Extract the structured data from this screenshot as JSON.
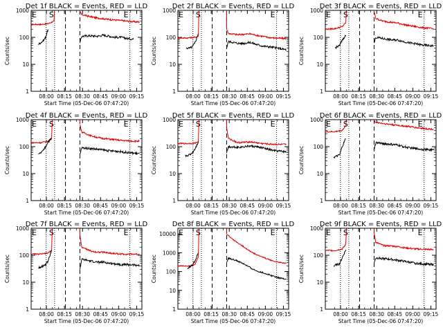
{
  "window": {
    "background": "#ffffff"
  },
  "style": {
    "events_color": "#000000",
    "lld_color": "#dd0000"
  },
  "chart_data": {
    "type": "line",
    "ylabel": "Counts/sec",
    "xlabel": "Start Time (05-Dec-06 07:47:20)",
    "x_ticks": [
      "08:00",
      "08:15",
      "08:30",
      "08:45",
      "09:00",
      "09:15"
    ],
    "y_scale": "log",
    "ylim": [
      1,
      1000
    ],
    "ylim_extended": [
      1,
      20000
    ],
    "y_ticks": [
      "1",
      "10",
      "100",
      "1000"
    ],
    "y_ticks_extended": [
      "1",
      "10",
      "100",
      "1000",
      "10000"
    ],
    "xlim_minutes_after_start": [
      0,
      92
    ],
    "markers": {
      "E_dotted": [
        0,
        12.5,
        82
      ],
      "S_dotted": 19.5,
      "dashed": [
        28.5,
        40.5
      ],
      "labels": [
        "E",
        "S",
        "E"
      ]
    },
    "panels": [
      {
        "title": "Det 1f BLACK = Events, RED = LLD",
        "extended": false,
        "events_pre": [
          [
            6,
            55
          ],
          [
            10,
            75
          ],
          [
            12,
            100
          ],
          [
            14,
            200
          ]
        ],
        "events_post": [
          [
            40.5,
            60
          ],
          [
            42,
            110
          ],
          [
            48,
            115
          ],
          [
            55,
            110
          ],
          [
            60,
            120
          ],
          [
            65,
            110
          ],
          [
            70,
            100
          ],
          [
            75,
            100
          ],
          [
            80,
            90
          ],
          [
            85,
            85
          ]
        ],
        "lld_pre": [
          [
            0,
            300
          ],
          [
            8,
            300
          ],
          [
            14,
            320
          ],
          [
            19,
            400
          ]
        ],
        "lld_post": [
          [
            40.5,
            900
          ],
          [
            42,
            700
          ],
          [
            48,
            600
          ],
          [
            55,
            520
          ],
          [
            65,
            460
          ],
          [
            75,
            420
          ],
          [
            85,
            380
          ],
          [
            90,
            370
          ]
        ]
      },
      {
        "title": "Det 2f BLACK = Events, RED = LLD",
        "extended": false,
        "events_pre": [
          [
            7,
            40
          ],
          [
            10,
            40
          ],
          [
            12,
            45
          ],
          [
            14,
            60
          ],
          [
            17,
            140
          ]
        ],
        "events_post": [
          [
            40.5,
            40
          ],
          [
            42,
            70
          ],
          [
            50,
            60
          ],
          [
            55,
            60
          ],
          [
            60,
            65
          ],
          [
            65,
            55
          ],
          [
            70,
            48
          ],
          [
            75,
            45
          ],
          [
            80,
            42
          ],
          [
            85,
            38
          ],
          [
            90,
            35
          ]
        ],
        "lld_pre": [
          [
            0,
            95
          ],
          [
            8,
            95
          ],
          [
            14,
            100
          ],
          [
            17,
            110
          ]
        ],
        "lld_post": [
          [
            40.5,
            200
          ],
          [
            42,
            140
          ],
          [
            50,
            125
          ],
          [
            55,
            130
          ],
          [
            60,
            135
          ],
          [
            65,
            120
          ],
          [
            70,
            110
          ],
          [
            75,
            100
          ],
          [
            80,
            95
          ],
          [
            90,
            90
          ]
        ]
      },
      {
        "title": "Det 3f BLACK = Events, RED = LLD",
        "extended": false,
        "events_pre": [
          [
            8,
            40
          ],
          [
            10,
            45
          ],
          [
            12,
            50
          ],
          [
            14,
            80
          ],
          [
            17,
            120
          ]
        ],
        "events_post": [
          [
            40.5,
            60
          ],
          [
            42,
            100
          ],
          [
            48,
            90
          ],
          [
            55,
            80
          ],
          [
            60,
            80
          ],
          [
            65,
            70
          ],
          [
            70,
            62
          ],
          [
            75,
            58
          ],
          [
            80,
            52
          ],
          [
            90,
            48
          ]
        ],
        "lld_pre": [
          [
            0,
            200
          ],
          [
            8,
            210
          ],
          [
            14,
            250
          ],
          [
            17,
            350
          ]
        ],
        "lld_post": [
          [
            40.5,
            900
          ],
          [
            42,
            500
          ],
          [
            48,
            400
          ],
          [
            55,
            360
          ],
          [
            60,
            340
          ],
          [
            65,
            300
          ],
          [
            70,
            270
          ],
          [
            75,
            250
          ],
          [
            80,
            230
          ],
          [
            90,
            210
          ]
        ]
      },
      {
        "title": "Det 4f BLACK = Events, RED = LLD",
        "extended": false,
        "events_pre": [
          [
            6,
            50
          ],
          [
            10,
            70
          ],
          [
            12,
            100
          ],
          [
            14,
            150
          ],
          [
            17,
            200
          ]
        ],
        "events_post": [
          [
            40.5,
            50
          ],
          [
            42,
            90
          ],
          [
            50,
            85
          ],
          [
            55,
            80
          ],
          [
            60,
            75
          ],
          [
            65,
            70
          ],
          [
            70,
            68
          ],
          [
            75,
            65
          ],
          [
            80,
            60
          ],
          [
            90,
            55
          ]
        ],
        "lld_pre": [
          [
            0,
            140
          ],
          [
            8,
            140
          ],
          [
            14,
            160
          ],
          [
            17,
            200
          ]
        ],
        "lld_post": [
          [
            40.5,
            700
          ],
          [
            42,
            350
          ],
          [
            50,
            250
          ],
          [
            55,
            220
          ],
          [
            60,
            200
          ],
          [
            65,
            190
          ],
          [
            70,
            180
          ],
          [
            75,
            170
          ],
          [
            85,
            160
          ],
          [
            90,
            160
          ]
        ]
      },
      {
        "title": "Det 5f BLACK = Events, RED = LLD",
        "extended": false,
        "events_pre": [
          [
            6,
            45
          ],
          [
            10,
            50
          ],
          [
            12,
            60
          ],
          [
            14,
            80
          ],
          [
            17,
            150
          ]
        ],
        "events_post": [
          [
            40.5,
            60
          ],
          [
            42,
            100
          ],
          [
            50,
            95
          ],
          [
            55,
            100
          ],
          [
            60,
            105
          ],
          [
            65,
            100
          ],
          [
            70,
            90
          ],
          [
            75,
            80
          ],
          [
            80,
            70
          ],
          [
            90,
            65
          ]
        ],
        "lld_pre": [
          [
            0,
            130
          ],
          [
            8,
            130
          ],
          [
            14,
            135
          ],
          [
            17,
            150
          ]
        ],
        "lld_post": [
          [
            40.5,
            500
          ],
          [
            42,
            200
          ],
          [
            50,
            140
          ],
          [
            55,
            145
          ],
          [
            60,
            150
          ],
          [
            65,
            140
          ],
          [
            70,
            130
          ],
          [
            75,
            125
          ],
          [
            85,
            120
          ],
          [
            90,
            120
          ]
        ]
      },
      {
        "title": "Det 6f BLACK = Events, RED = LLD",
        "extended": false,
        "events_pre": [
          [
            7,
            40
          ],
          [
            10,
            45
          ],
          [
            12,
            50
          ],
          [
            14,
            100
          ],
          [
            17,
            200
          ]
        ],
        "events_post": [
          [
            40.5,
            80
          ],
          [
            42,
            140
          ],
          [
            48,
            130
          ],
          [
            55,
            120
          ],
          [
            60,
            115
          ],
          [
            65,
            100
          ],
          [
            70,
            90
          ],
          [
            75,
            85
          ],
          [
            80,
            80
          ],
          [
            90,
            75
          ]
        ],
        "lld_pre": [
          [
            0,
            350
          ],
          [
            8,
            360
          ],
          [
            14,
            400
          ],
          [
            17,
            600
          ]
        ],
        "lld_post": [
          [
            40.5,
            900
          ],
          [
            42,
            800
          ],
          [
            50,
            700
          ],
          [
            60,
            620
          ],
          [
            70,
            550
          ],
          [
            80,
            480
          ],
          [
            90,
            440
          ]
        ]
      },
      {
        "title": "Det 7f BLACK = Events, RED = LLD",
        "extended": false,
        "events_pre": [
          [
            6,
            35
          ],
          [
            10,
            40
          ],
          [
            12,
            45
          ],
          [
            14,
            60
          ],
          [
            17,
            150
          ]
        ],
        "events_post": [
          [
            40.5,
            30
          ],
          [
            42,
            70
          ],
          [
            50,
            60
          ],
          [
            55,
            55
          ],
          [
            60,
            55
          ],
          [
            65,
            50
          ],
          [
            70,
            48
          ],
          [
            75,
            45
          ],
          [
            80,
            45
          ],
          [
            90,
            42
          ]
        ],
        "lld_pre": [
          [
            0,
            110
          ],
          [
            8,
            110
          ],
          [
            14,
            120
          ],
          [
            17,
            150
          ]
        ],
        "lld_post": [
          [
            40.5,
            600
          ],
          [
            42,
            200
          ],
          [
            50,
            140
          ],
          [
            55,
            130
          ],
          [
            60,
            130
          ],
          [
            65,
            120
          ],
          [
            70,
            115
          ],
          [
            75,
            110
          ],
          [
            85,
            110
          ],
          [
            90,
            108
          ]
        ]
      },
      {
        "title": "Det 8f BLACK = Events, RED = LLD",
        "extended": true,
        "events_pre": [
          [
            8,
            150
          ],
          [
            10,
            180
          ],
          [
            12,
            220
          ],
          [
            14,
            350
          ],
          [
            17,
            1000
          ]
        ],
        "events_post": [
          [
            40.5,
            300
          ],
          [
            42,
            500
          ],
          [
            48,
            400
          ],
          [
            55,
            250
          ],
          [
            60,
            160
          ],
          [
            65,
            110
          ],
          [
            70,
            90
          ],
          [
            75,
            70
          ],
          [
            80,
            55
          ],
          [
            85,
            45
          ],
          [
            90,
            40
          ]
        ],
        "lld_pre": [
          [
            0,
            200
          ],
          [
            8,
            200
          ],
          [
            14,
            220
          ],
          [
            17,
            600
          ]
        ],
        "lld_post": [
          [
            40.5,
            10000
          ],
          [
            42,
            8000
          ],
          [
            48,
            4000
          ],
          [
            55,
            2000
          ],
          [
            60,
            1200
          ],
          [
            65,
            800
          ],
          [
            70,
            600
          ],
          [
            75,
            450
          ],
          [
            80,
            350
          ],
          [
            85,
            300
          ],
          [
            90,
            270
          ]
        ]
      },
      {
        "title": "Det 9f BLACK = Events, RED = LLD",
        "extended": false,
        "events_pre": [
          [
            7,
            40
          ],
          [
            10,
            45
          ],
          [
            12,
            50
          ],
          [
            14,
            80
          ],
          [
            17,
            160
          ]
        ],
        "events_post": [
          [
            40.5,
            50
          ],
          [
            42,
            80
          ],
          [
            48,
            75
          ],
          [
            55,
            70
          ],
          [
            60,
            65
          ],
          [
            65,
            60
          ],
          [
            70,
            55
          ],
          [
            75,
            50
          ],
          [
            80,
            48
          ],
          [
            90,
            45
          ]
        ],
        "lld_pre": [
          [
            0,
            150
          ],
          [
            8,
            150
          ],
          [
            14,
            170
          ],
          [
            17,
            250
          ]
        ],
        "lld_post": [
          [
            40.5,
            700
          ],
          [
            42,
            300
          ],
          [
            48,
            230
          ],
          [
            55,
            220
          ],
          [
            60,
            210
          ],
          [
            65,
            190
          ],
          [
            70,
            180
          ],
          [
            75,
            170
          ],
          [
            85,
            165
          ],
          [
            90,
            160
          ]
        ]
      }
    ]
  }
}
